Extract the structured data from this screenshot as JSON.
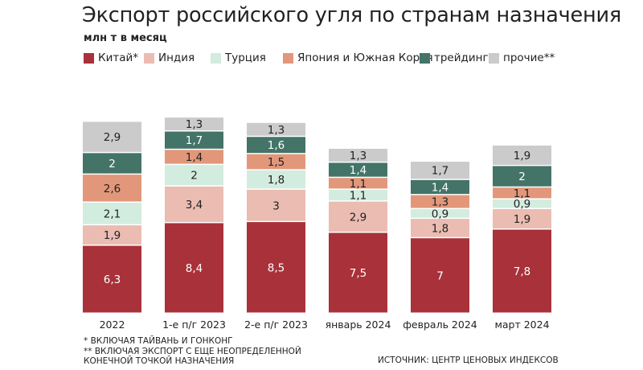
{
  "title": "Экспорт российского угля по странам назначения",
  "subtitle": "млн т в месяц",
  "chart_data": {
    "type": "bar",
    "stacked": true,
    "categories": [
      "2022",
      "1-е п/г 2023",
      "2-е п/г 2023",
      "январь 2024",
      "февраль 2024",
      "март 2024"
    ],
    "series": [
      {
        "name": "Китай*",
        "color": "#a8313a",
        "values": [
          6.3,
          8.4,
          8.5,
          7.5,
          7,
          7.8
        ],
        "labels": [
          "6,3",
          "8,4",
          "8,5",
          "7,5",
          "7",
          "7,8"
        ]
      },
      {
        "name": "Индия",
        "color": "#ebbcb1",
        "values": [
          1.9,
          3.4,
          3,
          2.9,
          1.8,
          1.9
        ],
        "labels": [
          "1,9",
          "3,4",
          "3",
          "2,9",
          "1,8",
          "1,9"
        ]
      },
      {
        "name": "Турция",
        "color": "#d3ece0",
        "values": [
          2.1,
          2,
          1.8,
          1.1,
          0.9,
          0.9
        ],
        "labels": [
          "2,1",
          "2",
          "1,8",
          "1,1",
          "0,9",
          "0,9"
        ]
      },
      {
        "name": "Япония и Южная Корея",
        "color": "#e2977a",
        "values": [
          2.6,
          1.4,
          1.5,
          1.1,
          1.3,
          1.1
        ],
        "labels": [
          "2,6",
          "1,4",
          "1,5",
          "1,1",
          "1,3",
          "1,1"
        ]
      },
      {
        "name": "трейдинг",
        "color": "#437467",
        "values": [
          2,
          1.7,
          1.6,
          1.4,
          1.4,
          2
        ],
        "labels": [
          "2",
          "1,7",
          "1,6",
          "1,4",
          "1,4",
          "2"
        ]
      },
      {
        "name": "прочие**",
        "color": "#cbcbcb",
        "values": [
          2.9,
          1.3,
          1.3,
          1.3,
          1.7,
          1.9
        ],
        "labels": [
          "2,9",
          "1,3",
          "1,3",
          "1,3",
          "1,7",
          "1,9"
        ]
      }
    ],
    "legend_position": "top-left",
    "grid": false
  },
  "footnotes": [
    "* включая Тайвань и Гонконг",
    "** включая экспорт с еще неопределенной",
    "конечной точкой назначения"
  ],
  "source": "ИСТОЧНИК: ЦЕНТР ЦЕНОВЫХ ИНДЕКСОВ"
}
